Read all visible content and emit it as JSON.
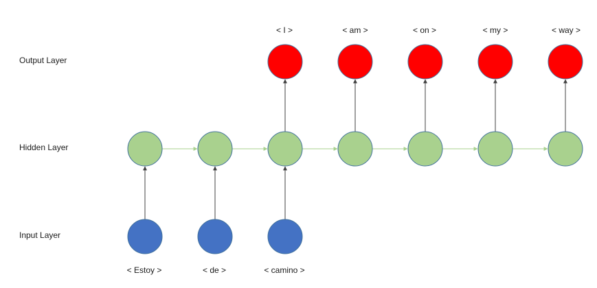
{
  "layers": {
    "output_label": "Output Layer",
    "hidden_label": "Hidden Layer",
    "input_label": "Input Layer"
  },
  "input_tokens": [
    "< Estoy >",
    "< de >",
    "< camino >"
  ],
  "output_tokens": [
    "< I >",
    "< am >",
    "< on >",
    "< my >",
    "< way >"
  ],
  "colors": {
    "output_node": "#ff0000",
    "hidden_node": "#a9d18e",
    "input_node": "#4472c4",
    "vertical_arrow": "#404040",
    "recurrent_arrow": "#a9d18e"
  }
}
